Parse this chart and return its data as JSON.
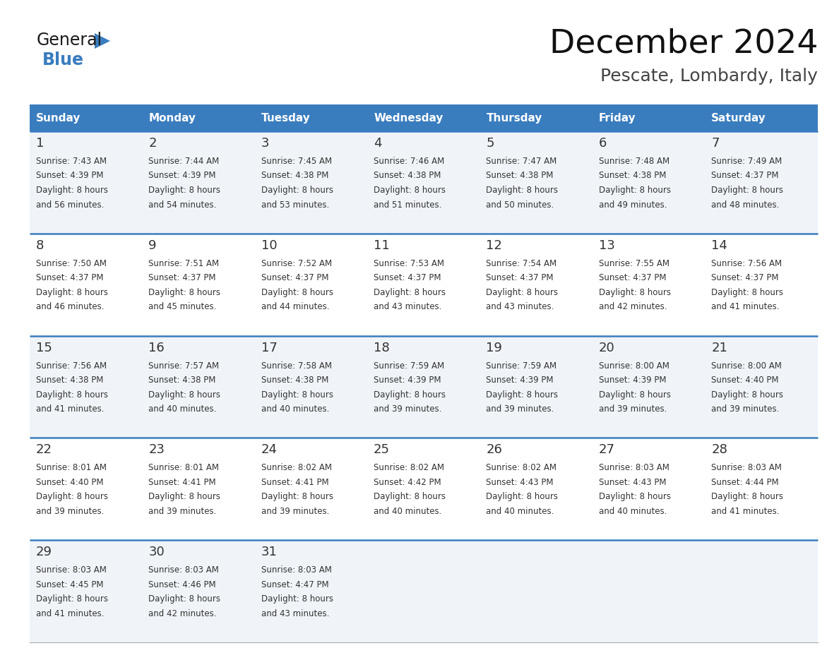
{
  "title": "December 2024",
  "subtitle": "Pescate, Lombardy, Italy",
  "header_color": "#3a7dbf",
  "header_text_color": "#ffffff",
  "divider_color": "#3a7dbf",
  "text_color": "#333333",
  "row_bg_odd": "#f0f4f8",
  "row_bg_even": "#ffffff",
  "days_of_week": [
    "Sunday",
    "Monday",
    "Tuesday",
    "Wednesday",
    "Thursday",
    "Friday",
    "Saturday"
  ],
  "weeks": [
    [
      {
        "day": "1",
        "sunrise": "7:43 AM",
        "sunset": "4:39 PM",
        "dl_suffix": "56 minutes."
      },
      {
        "day": "2",
        "sunrise": "7:44 AM",
        "sunset": "4:39 PM",
        "dl_suffix": "54 minutes."
      },
      {
        "day": "3",
        "sunrise": "7:45 AM",
        "sunset": "4:38 PM",
        "dl_suffix": "53 minutes."
      },
      {
        "day": "4",
        "sunrise": "7:46 AM",
        "sunset": "4:38 PM",
        "dl_suffix": "51 minutes."
      },
      {
        "day": "5",
        "sunrise": "7:47 AM",
        "sunset": "4:38 PM",
        "dl_suffix": "50 minutes."
      },
      {
        "day": "6",
        "sunrise": "7:48 AM",
        "sunset": "4:38 PM",
        "dl_suffix": "49 minutes."
      },
      {
        "day": "7",
        "sunrise": "7:49 AM",
        "sunset": "4:37 PM",
        "dl_suffix": "48 minutes."
      }
    ],
    [
      {
        "day": "8",
        "sunrise": "7:50 AM",
        "sunset": "4:37 PM",
        "dl_suffix": "46 minutes."
      },
      {
        "day": "9",
        "sunrise": "7:51 AM",
        "sunset": "4:37 PM",
        "dl_suffix": "45 minutes."
      },
      {
        "day": "10",
        "sunrise": "7:52 AM",
        "sunset": "4:37 PM",
        "dl_suffix": "44 minutes."
      },
      {
        "day": "11",
        "sunrise": "7:53 AM",
        "sunset": "4:37 PM",
        "dl_suffix": "43 minutes."
      },
      {
        "day": "12",
        "sunrise": "7:54 AM",
        "sunset": "4:37 PM",
        "dl_suffix": "43 minutes."
      },
      {
        "day": "13",
        "sunrise": "7:55 AM",
        "sunset": "4:37 PM",
        "dl_suffix": "42 minutes."
      },
      {
        "day": "14",
        "sunrise": "7:56 AM",
        "sunset": "4:37 PM",
        "dl_suffix": "41 minutes."
      }
    ],
    [
      {
        "day": "15",
        "sunrise": "7:56 AM",
        "sunset": "4:38 PM",
        "dl_suffix": "41 minutes."
      },
      {
        "day": "16",
        "sunrise": "7:57 AM",
        "sunset": "4:38 PM",
        "dl_suffix": "40 minutes."
      },
      {
        "day": "17",
        "sunrise": "7:58 AM",
        "sunset": "4:38 PM",
        "dl_suffix": "40 minutes."
      },
      {
        "day": "18",
        "sunrise": "7:59 AM",
        "sunset": "4:39 PM",
        "dl_suffix": "39 minutes."
      },
      {
        "day": "19",
        "sunrise": "7:59 AM",
        "sunset": "4:39 PM",
        "dl_suffix": "39 minutes."
      },
      {
        "day": "20",
        "sunrise": "8:00 AM",
        "sunset": "4:39 PM",
        "dl_suffix": "39 minutes."
      },
      {
        "day": "21",
        "sunrise": "8:00 AM",
        "sunset": "4:40 PM",
        "dl_suffix": "39 minutes."
      }
    ],
    [
      {
        "day": "22",
        "sunrise": "8:01 AM",
        "sunset": "4:40 PM",
        "dl_suffix": "39 minutes."
      },
      {
        "day": "23",
        "sunrise": "8:01 AM",
        "sunset": "4:41 PM",
        "dl_suffix": "39 minutes."
      },
      {
        "day": "24",
        "sunrise": "8:02 AM",
        "sunset": "4:41 PM",
        "dl_suffix": "39 minutes."
      },
      {
        "day": "25",
        "sunrise": "8:02 AM",
        "sunset": "4:42 PM",
        "dl_suffix": "40 minutes."
      },
      {
        "day": "26",
        "sunrise": "8:02 AM",
        "sunset": "4:43 PM",
        "dl_suffix": "40 minutes."
      },
      {
        "day": "27",
        "sunrise": "8:03 AM",
        "sunset": "4:43 PM",
        "dl_suffix": "40 minutes."
      },
      {
        "day": "28",
        "sunrise": "8:03 AM",
        "sunset": "4:44 PM",
        "dl_suffix": "41 minutes."
      }
    ],
    [
      {
        "day": "29",
        "sunrise": "8:03 AM",
        "sunset": "4:45 PM",
        "dl_suffix": "41 minutes."
      },
      {
        "day": "30",
        "sunrise": "8:03 AM",
        "sunset": "4:46 PM",
        "dl_suffix": "42 minutes."
      },
      {
        "day": "31",
        "sunrise": "8:03 AM",
        "sunset": "4:47 PM",
        "dl_suffix": "43 minutes."
      },
      null,
      null,
      null,
      null
    ]
  ]
}
